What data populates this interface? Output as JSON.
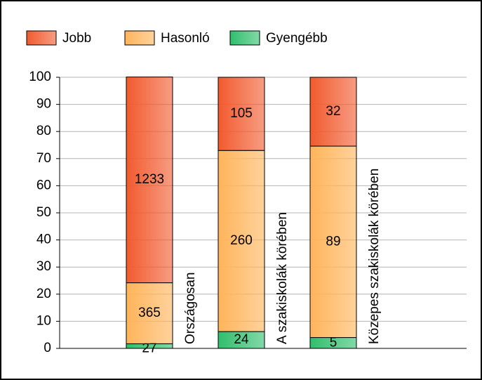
{
  "chart_data": {
    "type": "stacked_bar_100",
    "categories": [
      "Országosan",
      "A szakiskolák körében",
      "Közepes szakiskolák körében"
    ],
    "series": [
      {
        "name": "Gyengébb",
        "color": "#2fbf6c",
        "values": [
          1.7,
          6.2,
          4.0
        ],
        "counts": [
          "27",
          "24",
          "5"
        ]
      },
      {
        "name": "Hasonló",
        "color": "#ffb45a",
        "values": [
          22.5,
          66.8,
          70.6
        ],
        "counts": [
          "365",
          "260",
          "89"
        ]
      },
      {
        "name": "Jobb",
        "color": "#f25a2e",
        "values": [
          75.9,
          27.0,
          25.4
        ],
        "counts": [
          "1233",
          "105",
          "32"
        ]
      }
    ],
    "legend_order": [
      2,
      1,
      0
    ],
    "ylim": [
      0,
      100
    ],
    "yticks": [
      0,
      10,
      20,
      30,
      40,
      50,
      60,
      70,
      80,
      90,
      100
    ],
    "grid": true
  }
}
